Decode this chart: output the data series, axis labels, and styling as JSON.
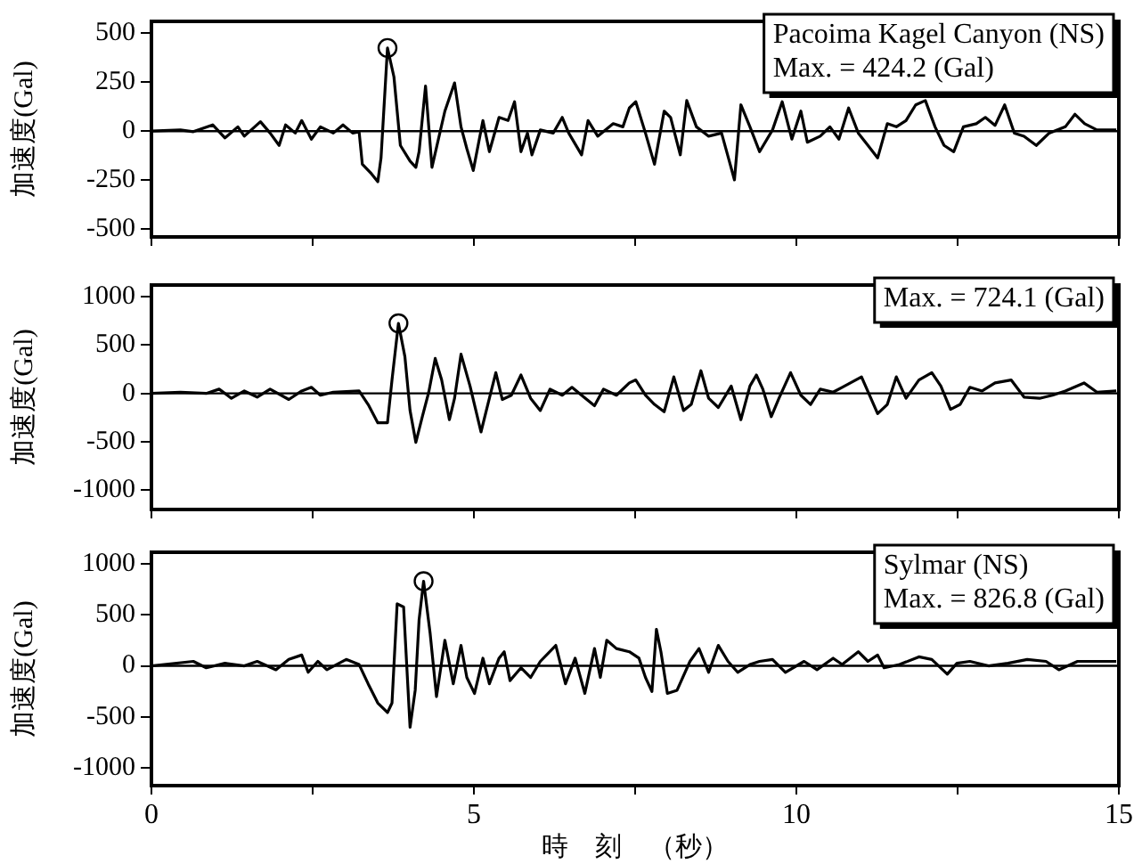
{
  "chart_data": [
    {
      "type": "line",
      "ylabel": "加速度(Gal)",
      "xlim": [
        0,
        15
      ],
      "xticks": [
        0,
        {
          "value": 2.5,
          "label": null
        },
        5,
        {
          "value": 7.5,
          "label": null
        },
        10,
        {
          "value": 12.5,
          "label": null
        },
        15
      ],
      "ylim": [
        -540,
        560
      ],
      "yticks": [
        -500,
        -250,
        0,
        250,
        500
      ],
      "tick_labels": "y",
      "grid": false,
      "legend": false,
      "annotations": [
        "Pacoima Kagel Canyon (NS)",
        "Max. = 424.2 (Gal)"
      ],
      "ref_lines": [
        {
          "axis": "y",
          "value": 0,
          "color": "#000000"
        }
      ],
      "series": [
        {
          "color": "#000000",
          "marker": "none",
          "x": [
            0,
            0.45,
            0.65,
            0.95,
            1.14,
            1.34,
            1.44,
            1.69,
            1.84,
            1.98,
            2.08,
            2.23,
            2.33,
            2.48,
            2.62,
            2.82,
            2.97,
            3.12,
            3.22,
            3.27,
            3.41,
            3.51,
            3.56,
            3.66,
            3.76,
            3.86,
            4.01,
            4.1,
            4.15,
            4.25,
            4.35,
            4.45,
            4.55,
            4.7,
            4.8,
            4.89,
            4.99,
            5.14,
            5.24,
            5.39,
            5.53,
            5.63,
            5.73,
            5.83,
            5.9,
            6.03,
            6.23,
            6.37,
            6.47,
            6.67,
            6.77,
            6.92,
            7.16,
            7.31,
            7.41,
            7.51,
            7.66,
            7.8,
            7.95,
            8.05,
            8.2,
            8.3,
            8.45,
            8.64,
            8.84,
            8.96,
            9.04,
            9.14,
            9.28,
            9.43,
            9.63,
            9.78,
            9.93,
            10.07,
            10.17,
            10.37,
            10.52,
            10.66,
            10.81,
            10.96,
            11.11,
            11.26,
            11.41,
            11.55,
            11.7,
            11.85,
            12,
            12.15,
            12.29,
            12.44,
            12.59,
            12.79,
            12.93,
            13.08,
            13.23,
            13.38,
            13.53,
            13.72,
            13.92,
            14.17,
            14.32,
            14.47,
            14.66,
            14.96
          ],
          "values": [
            0,
            6,
            -3,
            32,
            -35,
            22,
            -26,
            48,
            -10,
            -73,
            32,
            -10,
            54,
            -41,
            22,
            -10,
            32,
            -10,
            -3,
            -169,
            -217,
            -258,
            -137,
            424.2,
            277,
            -73,
            -153,
            -185,
            -105,
            230,
            -185,
            -41,
            102,
            246,
            22,
            -89,
            -201,
            54,
            -105,
            70,
            54,
            150,
            -105,
            -10,
            -121,
            6,
            -10,
            70,
            -10,
            -121,
            54,
            -26,
            38,
            22,
            118,
            150,
            -10,
            -169,
            102,
            70,
            -121,
            156,
            22,
            -26,
            -10,
            -153,
            -249,
            134,
            22,
            -105,
            6,
            150,
            -41,
            102,
            -57,
            -26,
            22,
            -41,
            118,
            -10,
            -73,
            -137,
            38,
            22,
            54,
            134,
            156,
            22,
            -73,
            -105,
            22,
            38,
            70,
            29,
            134,
            -10,
            -26,
            -73,
            -10,
            22,
            86,
            38,
            6,
            6
          ]
        },
        {
          "type": "scatter",
          "color": "#000000",
          "marker": "circle",
          "x": [
            3.66
          ],
          "values": [
            424.2
          ]
        }
      ]
    },
    {
      "type": "line",
      "ylabel": "加速度(Gal)",
      "xlim": [
        0,
        15
      ],
      "xticks": [
        0,
        {
          "value": 2.5,
          "label": null
        },
        5,
        {
          "value": 7.5,
          "label": null
        },
        10,
        {
          "value": 12.5,
          "label": null
        },
        15
      ],
      "ylim": [
        -1200,
        1120
      ],
      "yticks": [
        -1000,
        -500,
        0,
        500,
        1000
      ],
      "tick_labels": "y",
      "grid": false,
      "legend": false,
      "annotations": [
        "Max. = 724.1 (Gal)"
      ],
      "ref_lines": [
        {
          "axis": "y",
          "value": 0,
          "color": "#000000"
        }
      ],
      "series": [
        {
          "color": "#000000",
          "marker": "none",
          "x": [
            0,
            0.45,
            0.85,
            1.05,
            1.24,
            1.44,
            1.64,
            1.84,
            2.13,
            2.33,
            2.48,
            2.62,
            2.82,
            3.22,
            3.36,
            3.51,
            3.66,
            3.73,
            3.83,
            3.93,
            4.01,
            4.1,
            4.2,
            4.3,
            4.4,
            4.5,
            4.62,
            4.7,
            4.8,
            4.94,
            5.11,
            5.24,
            5.34,
            5.44,
            5.58,
            5.73,
            5.88,
            6.03,
            6.18,
            6.37,
            6.52,
            6.67,
            6.87,
            7.01,
            7.21,
            7.41,
            7.51,
            7.66,
            7.8,
            7.95,
            8.1,
            8.25,
            8.37,
            8.52,
            8.64,
            8.79,
            8.99,
            9.14,
            9.28,
            9.38,
            9.48,
            9.61,
            9.73,
            9.91,
            10.07,
            10.22,
            10.37,
            10.57,
            10.71,
            11.01,
            11.26,
            11.41,
            11.55,
            11.7,
            11.9,
            12.1,
            12.24,
            12.39,
            12.54,
            12.69,
            12.88,
            13.08,
            13.33,
            13.53,
            13.77,
            13.97,
            14.17,
            14.46,
            14.66,
            14.96
          ],
          "values": [
            0,
            13,
            0,
            44,
            -51,
            25,
            -38,
            44,
            -63,
            25,
            63,
            -19,
            13,
            25,
            -114,
            -304,
            -304,
            139,
            724.1,
            380,
            -177,
            -506,
            -241,
            13,
            361,
            139,
            -272,
            -51,
            405,
            76,
            -399,
            -51,
            215,
            -63,
            -19,
            190,
            -51,
            -177,
            44,
            -19,
            63,
            -19,
            -127,
            44,
            -19,
            108,
            139,
            -19,
            -114,
            -190,
            171,
            -177,
            -114,
            234,
            -51,
            -146,
            76,
            -272,
            76,
            190,
            44,
            -241,
            -51,
            215,
            -19,
            -114,
            44,
            13,
            63,
            171,
            -209,
            -114,
            171,
            -51,
            139,
            215,
            76,
            -165,
            -114,
            63,
            25,
            108,
            139,
            -38,
            -51,
            -19,
            25,
            108,
            13,
            25
          ]
        },
        {
          "type": "scatter",
          "color": "#000000",
          "marker": "circle",
          "x": [
            3.83
          ],
          "values": [
            724.1
          ]
        }
      ]
    },
    {
      "type": "line",
      "xlabel": "時　刻　（秒）",
      "ylabel": "加速度(Gal)",
      "xlim": [
        0,
        15
      ],
      "xticks": [
        0,
        {
          "value": 2.5,
          "label": null
        },
        5,
        {
          "value": 7.5,
          "label": null
        },
        10,
        {
          "value": 12.5,
          "label": null
        },
        15
      ],
      "ylim": [
        -1170,
        1110
      ],
      "yticks": [
        -1000,
        -500,
        0,
        500,
        1000
      ],
      "grid": false,
      "legend": false,
      "annotations": [
        "Sylmar (NS)",
        "Max. = 826.8 (Gal)"
      ],
      "ref_lines": [
        {
          "axis": "y",
          "value": 0,
          "color": "#000000"
        }
      ],
      "series": [
        {
          "color": "#000000",
          "marker": "none",
          "x": [
            0,
            0.65,
            0.85,
            1.14,
            1.44,
            1.64,
            1.93,
            2.13,
            2.33,
            2.43,
            2.58,
            2.72,
            3.02,
            3.22,
            3.36,
            3.51,
            3.66,
            3.73,
            3.81,
            3.91,
            4.01,
            4.09,
            4.15,
            4.22,
            4.32,
            4.42,
            4.55,
            4.68,
            4.8,
            4.89,
            5.01,
            5.14,
            5.24,
            5.39,
            5.47,
            5.56,
            5.73,
            5.88,
            6.03,
            6.27,
            6.42,
            6.57,
            6.72,
            6.87,
            6.96,
            7.06,
            7.21,
            7.41,
            7.56,
            7.66,
            7.76,
            7.83,
            7.9,
            8,
            8.15,
            8.35,
            8.49,
            8.64,
            8.79,
            8.94,
            9.09,
            9.28,
            9.43,
            9.63,
            9.83,
            10.12,
            10.32,
            10.57,
            10.71,
            10.96,
            11.11,
            11.26,
            11.36,
            11.6,
            11.9,
            12.1,
            12.34,
            12.49,
            12.69,
            12.98,
            13.28,
            13.58,
            13.87,
            14.07,
            14.36,
            14.66,
            14.96
          ],
          "values": [
            0,
            44,
            -19,
            25,
            0,
            44,
            -38,
            63,
            106,
            -63,
            44,
            -38,
            63,
            13,
            -175,
            -363,
            -456,
            -363,
            606,
            575,
            -600,
            -238,
            450,
            826.8,
            325,
            -300,
            250,
            -175,
            200,
            -113,
            -269,
            75,
            -175,
            75,
            138,
            -144,
            -19,
            -113,
            44,
            200,
            -175,
            75,
            -269,
            169,
            -113,
            250,
            169,
            138,
            75,
            -113,
            -250,
            356,
            138,
            -269,
            -238,
            44,
            169,
            -63,
            200,
            44,
            -63,
            13,
            44,
            63,
            -63,
            44,
            -38,
            75,
            13,
            138,
            44,
            106,
            -19,
            13,
            88,
            63,
            -81,
            25,
            44,
            0,
            25,
            63,
            44,
            -38,
            44,
            44,
            44
          ]
        },
        {
          "type": "scatter",
          "color": "#000000",
          "marker": "circle",
          "x": [
            4.22
          ],
          "values": [
            826.8
          ]
        }
      ]
    }
  ]
}
